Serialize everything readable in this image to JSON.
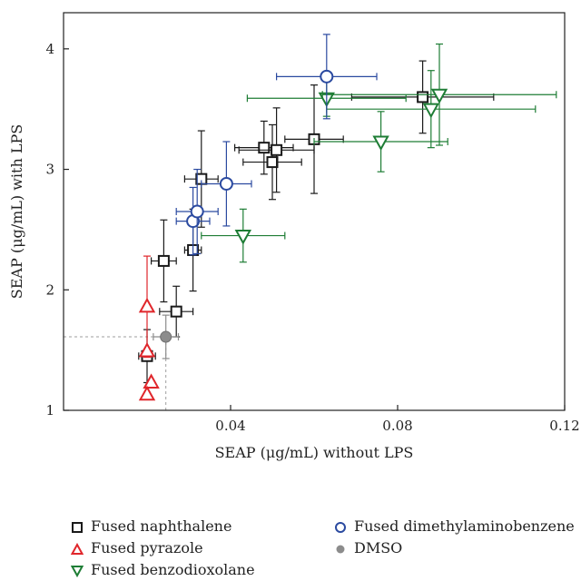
{
  "chart_data": {
    "type": "scatter",
    "xlabel": "SEAP (μg/mL) without LPS",
    "ylabel": "SEAP (μg/mL) with LPS",
    "xlim": [
      0.0,
      0.12
    ],
    "ylim": [
      1,
      4.3
    ],
    "x_ticks": [
      {
        "value": 0.04,
        "label": "0.04"
      },
      {
        "value": 0.08,
        "label": "0.08"
      },
      {
        "value": 0.12,
        "label": "0.12"
      }
    ],
    "y_ticks": [
      {
        "value": 1,
        "label": "1"
      },
      {
        "value": 2,
        "label": "2"
      },
      {
        "value": 3,
        "label": "3"
      },
      {
        "value": 4,
        "label": "4"
      }
    ],
    "grid": false,
    "legend_position": "bottom",
    "reference_lines": {
      "x": 0.0245,
      "y": 1.61,
      "color": "#9e9e9e"
    },
    "series": [
      {
        "name": "Fused naphthalene",
        "marker": "square",
        "color": "#1a1a1a",
        "points": [
          {
            "x": 0.02,
            "y": 1.45,
            "xerr": 0.002,
            "yerr": 0.22
          },
          {
            "x": 0.027,
            "y": 1.82,
            "xerr": 0.004,
            "yerr": 0.21
          },
          {
            "x": 0.024,
            "y": 2.24,
            "xerr": 0.003,
            "yerr": 0.34
          },
          {
            "x": 0.031,
            "y": 2.33,
            "xerr": 0.002,
            "yerr": 0.34
          },
          {
            "x": 0.033,
            "y": 2.92,
            "xerr": 0.004,
            "yerr": 0.4
          },
          {
            "x": 0.048,
            "y": 3.18,
            "xerr": 0.007,
            "yerr": 0.22
          },
          {
            "x": 0.05,
            "y": 3.06,
            "xerr": 0.007,
            "yerr": 0.31
          },
          {
            "x": 0.051,
            "y": 3.16,
            "xerr": 0.009,
            "yerr": 0.35
          },
          {
            "x": 0.06,
            "y": 3.25,
            "xerr": 0.007,
            "yerr": 0.45
          },
          {
            "x": 0.086,
            "y": 3.6,
            "xerr": 0.017,
            "yerr": 0.3
          }
        ]
      },
      {
        "name": "Fused pyrazole",
        "marker": "triangle-up",
        "color": "#e0262b",
        "points": [
          {
            "x": 0.02,
            "y": 1.86,
            "xerr": 0.0,
            "yerr": 0.42
          },
          {
            "x": 0.02,
            "y": 1.49,
            "xerr": 0.0,
            "yerr": 0.0
          },
          {
            "x": 0.021,
            "y": 1.23,
            "xerr": 0.0,
            "yerr": 0.0
          },
          {
            "x": 0.02,
            "y": 1.13,
            "xerr": 0.0,
            "yerr": 0.0
          }
        ]
      },
      {
        "name": "Fused benzodioxolane",
        "marker": "triangle-down",
        "color": "#1e7d35",
        "points": [
          {
            "x": 0.043,
            "y": 2.45,
            "xerr": 0.01,
            "yerr": 0.22
          },
          {
            "x": 0.063,
            "y": 3.59,
            "xerr": 0.019,
            "yerr": 0.15
          },
          {
            "x": 0.076,
            "y": 3.23,
            "xerr": 0.016,
            "yerr": 0.25
          },
          {
            "x": 0.088,
            "y": 3.5,
            "xerr": 0.025,
            "yerr": 0.32
          },
          {
            "x": 0.09,
            "y": 3.62,
            "xerr": 0.028,
            "yerr": 0.42
          }
        ]
      },
      {
        "name": "Fused dimethylaminobenzene",
        "marker": "circle-open",
        "color": "#2b4aa0",
        "points": [
          {
            "x": 0.031,
            "y": 2.57,
            "xerr": 0.004,
            "yerr": 0.28
          },
          {
            "x": 0.032,
            "y": 2.65,
            "xerr": 0.005,
            "yerr": 0.35
          },
          {
            "x": 0.039,
            "y": 2.88,
            "xerr": 0.006,
            "yerr": 0.35
          },
          {
            "x": 0.063,
            "y": 3.77,
            "xerr": 0.012,
            "yerr": 0.35
          }
        ]
      },
      {
        "name": "DMSO",
        "marker": "circle-filled",
        "color": "#8c8c8c",
        "points": [
          {
            "x": 0.0245,
            "y": 1.61,
            "xerr": 0.003,
            "yerr": 0.18
          }
        ]
      }
    ]
  }
}
